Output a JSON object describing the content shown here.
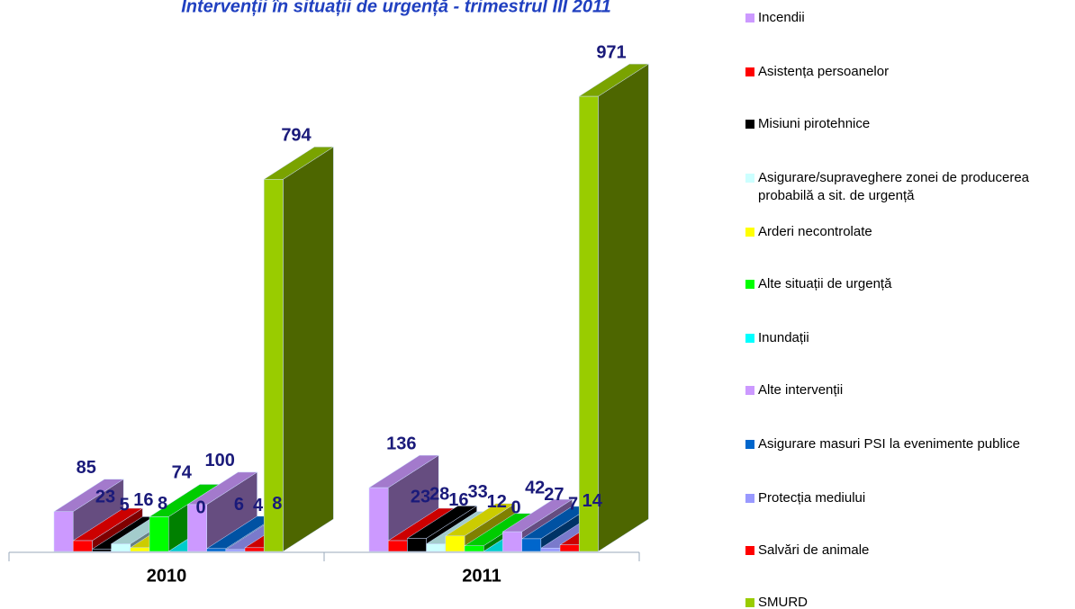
{
  "chart_data": {
    "type": "bar3d",
    "title": "Intervenții în situații de urgență - trimestrul III 2011",
    "categories": [
      "2010",
      "2011"
    ],
    "series": [
      {
        "name": "Incendii",
        "color": "#cc99ff",
        "values": [
          85,
          136
        ]
      },
      {
        "name": "Asistența persoanelor",
        "color": "#ff0000",
        "values": [
          23,
          23
        ]
      },
      {
        "name": "Misiuni pirotehnice",
        "color": "#000000",
        "values": [
          5,
          28
        ]
      },
      {
        "name": "Asigurare/supraveghere zonei de producerea probabilă a sit. de urgență",
        "color": "#ccffff",
        "values": [
          16,
          16
        ]
      },
      {
        "name": "Arderi necontrolate",
        "color": "#ffff00",
        "values": [
          8,
          33
        ]
      },
      {
        "name": "Alte situații de urgență",
        "color": "#00ff00",
        "values": [
          74,
          12
        ]
      },
      {
        "name": "Inundații",
        "color": "#00ffff",
        "values": [
          0,
          0
        ]
      },
      {
        "name": "Alte intervenții",
        "color": "#cc99ff",
        "values": [
          100,
          42
        ]
      },
      {
        "name": "Asigurare masuri PSI la evenimente publice",
        "color": "#0066cc",
        "values": [
          6,
          27
        ]
      },
      {
        "name": "Protecția mediului",
        "color": "#9999ff",
        "values": [
          4,
          7
        ]
      },
      {
        "name": "Salvări de animale",
        "color": "#ff0000",
        "values": [
          8,
          14
        ]
      },
      {
        "name": "SMURD",
        "color": "#99cc00",
        "values": [
          794,
          971
        ]
      }
    ]
  }
}
